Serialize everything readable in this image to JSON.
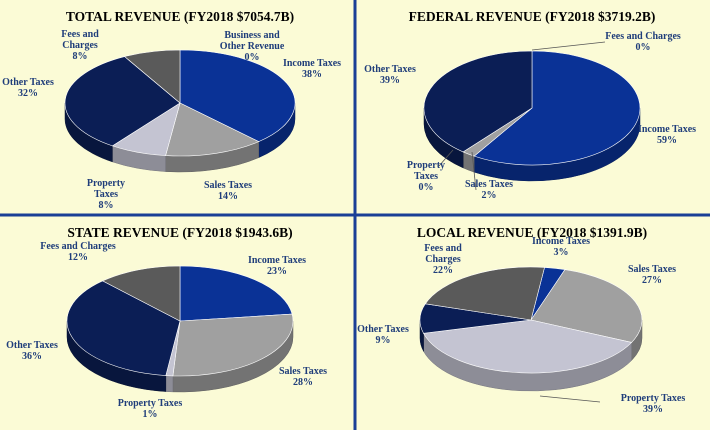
{
  "colors": {
    "background": "#fbfbd6",
    "divider": "#1a3f96",
    "label_text": "#1f3d7a",
    "title_text": "#000000"
  },
  "category_colors": {
    "Income Taxes": "#0a3296",
    "Sales Taxes": "#a0a0a0",
    "Property Taxes": "#c4c4d2",
    "Other Taxes": "#0b1e55",
    "Fees and Charges": "#5a5a5a",
    "Business and Other Revenue": "#d0d0d8"
  },
  "chart_data": [
    {
      "type": "pie",
      "title": "TOTAL REVENUE (FY2018 $7054.7B)",
      "slices": [
        {
          "category": "Income Taxes",
          "label": [
            "Income Taxes",
            "38%"
          ],
          "value": 38
        },
        {
          "category": "Sales Taxes",
          "label": [
            "Sales Taxes",
            "14%"
          ],
          "value": 14
        },
        {
          "category": "Property Taxes",
          "label": [
            "Property",
            "Taxes",
            "8%"
          ],
          "value": 8
        },
        {
          "category": "Other Taxes",
          "label": [
            "Other Taxes",
            "32%"
          ],
          "value": 32
        },
        {
          "category": "Fees and Charges",
          "label": [
            "Fees and",
            "Charges",
            "8%"
          ],
          "value": 8
        },
        {
          "category": "Business and Other Revenue",
          "label": [
            "Business and",
            "Other Revenue",
            "0%"
          ],
          "value": 0
        }
      ]
    },
    {
      "type": "pie",
      "title": "FEDERAL REVENUE (FY2018 $3719.2B)",
      "slices": [
        {
          "category": "Income Taxes",
          "label": [
            "Income Taxes",
            "59%"
          ],
          "value": 59
        },
        {
          "category": "Sales Taxes",
          "label": [
            "Sales Taxes",
            "2%"
          ],
          "value": 2
        },
        {
          "category": "Property Taxes",
          "label": [
            "Property",
            "Taxes",
            "0%"
          ],
          "value": 0
        },
        {
          "category": "Other Taxes",
          "label": [
            "Other Taxes",
            "39%"
          ],
          "value": 39
        },
        {
          "category": "Fees and Charges",
          "label": [
            "Fees and Charges",
            "0%"
          ],
          "value": 0
        }
      ]
    },
    {
      "type": "pie",
      "title": "STATE REVENUE (FY2018 $1943.6B)",
      "slices": [
        {
          "category": "Income Taxes",
          "label": [
            "Income Taxes",
            "23%"
          ],
          "value": 23
        },
        {
          "category": "Sales Taxes",
          "label": [
            "Sales Taxes",
            "28%"
          ],
          "value": 28
        },
        {
          "category": "Property Taxes",
          "label": [
            "Property Taxes",
            "1%"
          ],
          "value": 1
        },
        {
          "category": "Other Taxes",
          "label": [
            "Other Taxes",
            "36%"
          ],
          "value": 36
        },
        {
          "category": "Fees and Charges",
          "label": [
            "Fees and Charges",
            "12%"
          ],
          "value": 12
        }
      ]
    },
    {
      "type": "pie",
      "title": "LOCAL REVENUE (FY2018 $1391.9B)",
      "slices": [
        {
          "category": "Income Taxes",
          "label": [
            "Income Taxes",
            "3%"
          ],
          "value": 3
        },
        {
          "category": "Sales Taxes",
          "label": [
            "Sales Taxes",
            "27%"
          ],
          "value": 27
        },
        {
          "category": "Property Taxes",
          "label": [
            "Property Taxes",
            "39%"
          ],
          "value": 39
        },
        {
          "category": "Other Taxes",
          "label": [
            "Other Taxes",
            "9%"
          ],
          "value": 9
        },
        {
          "category": "Fees and Charges",
          "label": [
            "Fees and",
            "Charges",
            "22%"
          ],
          "value": 22
        }
      ]
    }
  ]
}
